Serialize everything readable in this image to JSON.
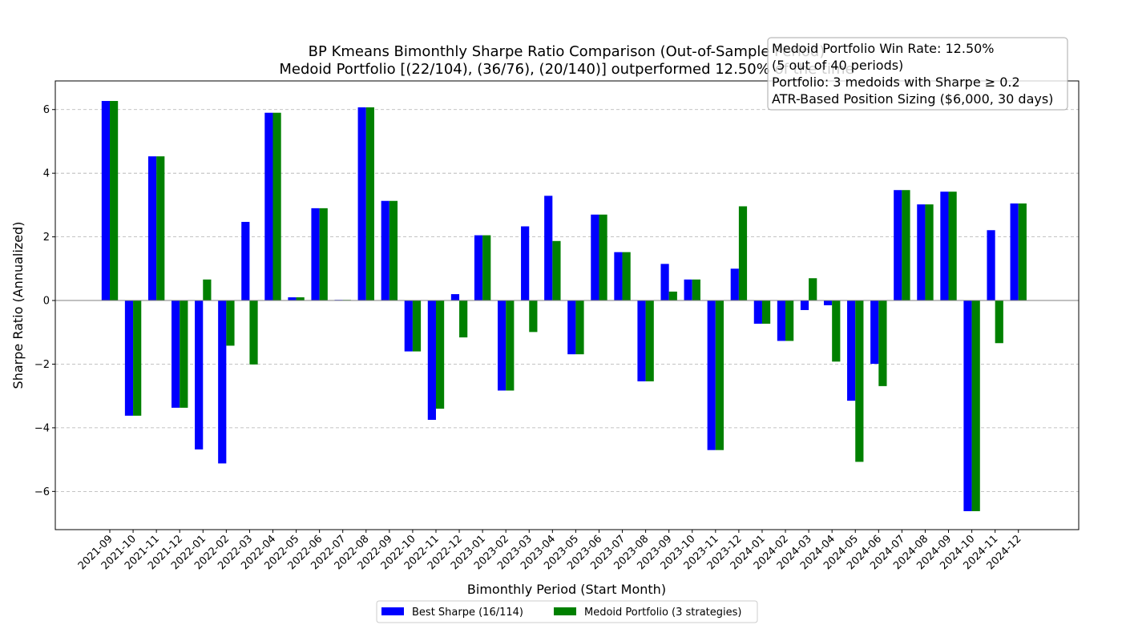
{
  "chart_data": {
    "type": "bar",
    "title_line1": "BP Kmeans Bimonthly Sharpe Ratio Comparison (Out-of-Sample Period)",
    "title_line2": "Medoid Portfolio [(22/104), (36/76), (20/140)] outperformed 12.50% of the time",
    "xlabel": "Bimonthly Period (Start Month)",
    "ylabel": "Sharpe Ratio (Annualized)",
    "ylim": [
      -7.2,
      6.9
    ],
    "yticks": [
      -6,
      -4,
      -2,
      0,
      2,
      4,
      6
    ],
    "ytick_labels": [
      "−6",
      "−4",
      "−2",
      "0",
      "2",
      "4",
      "6"
    ],
    "grid": "horizontal dashed",
    "legend_position": "bottom-center",
    "categories": [
      "2021-09",
      "2021-10",
      "2021-11",
      "2021-12",
      "2022-01",
      "2022-02",
      "2022-03",
      "2022-04",
      "2022-05",
      "2022-06",
      "2022-07",
      "2022-08",
      "2022-09",
      "2022-10",
      "2022-11",
      "2022-12",
      "2023-01",
      "2023-02",
      "2023-03",
      "2023-04",
      "2023-05",
      "2023-06",
      "2023-07",
      "2023-08",
      "2023-09",
      "2023-10",
      "2023-11",
      "2023-12",
      "2024-01",
      "2024-02",
      "2024-03",
      "2024-04",
      "2024-05",
      "2024-06",
      "2024-07",
      "2024-08",
      "2024-09",
      "2024-10",
      "2024-11",
      "2024-12"
    ],
    "series": [
      {
        "name": "Best Sharpe (16/114)",
        "color": "#0000ff",
        "values": [
          6.27,
          -3.62,
          4.53,
          -3.37,
          -4.68,
          -5.12,
          2.47,
          5.9,
          0.1,
          2.9,
          0.02,
          6.07,
          3.13,
          -1.6,
          -3.75,
          0.2,
          2.05,
          -2.83,
          2.33,
          3.29,
          -1.69,
          2.7,
          1.52,
          -2.54,
          1.15,
          0.66,
          -4.7,
          1.0,
          -0.73,
          -1.27,
          -0.3,
          -0.15,
          -3.15,
          -1.99,
          3.47,
          3.02,
          3.42,
          -6.62,
          2.21,
          3.05
        ]
      },
      {
        "name": "Medoid Portfolio (3 strategies)",
        "color": "#008000",
        "values": [
          6.27,
          -3.62,
          4.53,
          -3.37,
          0.66,
          -1.42,
          -2.01,
          5.9,
          0.1,
          2.9,
          0.02,
          6.07,
          3.13,
          -1.6,
          -3.4,
          -1.16,
          2.05,
          -2.83,
          -0.99,
          1.87,
          -1.69,
          2.7,
          1.52,
          -2.54,
          0.28,
          0.66,
          -4.7,
          2.96,
          -0.73,
          -1.27,
          0.7,
          -1.92,
          -5.07,
          -2.69,
          3.47,
          3.02,
          3.42,
          -6.62,
          -1.34,
          3.05
        ]
      }
    ]
  },
  "info_box": {
    "line1": "Medoid Portfolio Win Rate: 12.50%",
    "line2": "(5 out of 40 periods)",
    "line3": "Portfolio: 3 medoids with Sharpe ≥ 0.2",
    "line4": "ATR-Based Position Sizing ($6,000, 30 days)"
  }
}
